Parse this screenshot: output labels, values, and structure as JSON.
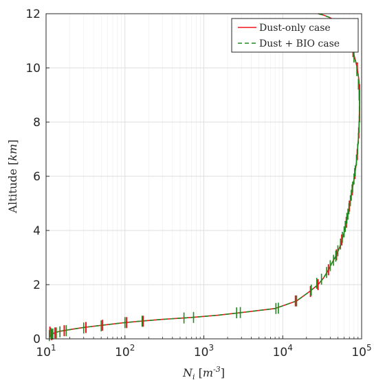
{
  "chart_data": {
    "type": "line",
    "xlabel": "N_i [m^-3]",
    "ylabel": "Altitude [km]",
    "x_scale": "log",
    "xlim": [
      10,
      100000
    ],
    "ylim": [
      0,
      12
    ],
    "grid": true,
    "legend_position": "top-right",
    "x_tick_labels": [
      "10^1",
      "10^2",
      "10^3",
      "10^4",
      "10^5"
    ],
    "y_ticks": [
      0,
      2,
      4,
      6,
      8,
      10,
      12
    ],
    "series": [
      {
        "name": "Dust-only case",
        "color": "#e8141b",
        "dash": "solid",
        "x": [
          11,
          11.5,
          12,
          13,
          15,
          18,
          23,
          30,
          50,
          100,
          170,
          300,
          700,
          1500,
          3000,
          8000,
          15000,
          22000,
          28000,
          33000,
          38000,
          43000,
          48000,
          53000,
          57000,
          61000,
          64000,
          67000,
          70000,
          73000,
          76000,
          79000,
          82000,
          85000,
          88000,
          90000,
          92000,
          93000,
          94000,
          94500,
          94000,
          92000,
          88000,
          83000,
          78000,
          72000,
          65000,
          57000,
          48000,
          40000,
          33000,
          28000
        ],
        "y": [
          0.05,
          0.12,
          0.18,
          0.23,
          0.28,
          0.32,
          0.37,
          0.42,
          0.5,
          0.6,
          0.66,
          0.72,
          0.79,
          0.87,
          0.97,
          1.12,
          1.4,
          1.75,
          2.0,
          2.25,
          2.55,
          2.85,
          3.1,
          3.4,
          3.7,
          4.0,
          4.3,
          4.6,
          4.9,
          5.2,
          5.5,
          5.8,
          6.1,
          6.4,
          6.8,
          7.2,
          7.6,
          8.0,
          8.4,
          8.8,
          9.2,
          9.6,
          10.0,
          10.3,
          10.6,
          10.9,
          11.2,
          11.45,
          11.7,
          11.85,
          11.95,
          12.0
        ]
      },
      {
        "name": "Dust + BIO case",
        "color": "#1f8a1f",
        "dash": "dashed",
        "x": [
          11,
          11.5,
          12,
          13,
          15,
          18,
          23,
          30,
          50,
          100,
          170,
          300,
          700,
          1500,
          3000,
          8000,
          15000,
          22000,
          28000,
          33000,
          38000,
          43000,
          48000,
          53000,
          57000,
          61000,
          64000,
          67000,
          70000,
          73000,
          76000,
          79000,
          82000,
          85000,
          88000,
          90000,
          92000,
          93000,
          94000,
          94500,
          94000,
          92000,
          88000,
          83000,
          78000,
          72000,
          65000,
          57000,
          48000,
          40000,
          33000,
          28000
        ],
        "y": [
          0.05,
          0.12,
          0.18,
          0.23,
          0.28,
          0.32,
          0.37,
          0.42,
          0.5,
          0.6,
          0.66,
          0.72,
          0.79,
          0.87,
          0.97,
          1.12,
          1.4,
          1.75,
          2.0,
          2.25,
          2.55,
          2.85,
          3.1,
          3.4,
          3.7,
          4.0,
          4.3,
          4.6,
          4.9,
          5.2,
          5.5,
          5.8,
          6.1,
          6.4,
          6.8,
          7.2,
          7.6,
          8.0,
          8.4,
          8.8,
          9.2,
          9.6,
          10.0,
          10.3,
          10.6,
          10.9,
          11.2,
          11.45,
          11.7,
          11.85,
          11.95,
          12.0
        ]
      }
    ],
    "error_bars": {
      "red": [
        {
          "x": 11.2,
          "y": 0.25
        },
        {
          "x": 11.8,
          "y": 0.15
        },
        {
          "x": 13,
          "y": 0.22
        },
        {
          "x": 17,
          "y": 0.3
        },
        {
          "x": 32,
          "y": 0.42
        },
        {
          "x": 52,
          "y": 0.5
        },
        {
          "x": 105,
          "y": 0.6
        },
        {
          "x": 170,
          "y": 0.65
        },
        {
          "x": 14500,
          "y": 1.4
        },
        {
          "x": 22500,
          "y": 1.75
        },
        {
          "x": 28000,
          "y": 2.0
        },
        {
          "x": 38000,
          "y": 2.55
        },
        {
          "x": 48000,
          "y": 3.1
        },
        {
          "x": 56000,
          "y": 3.65
        },
        {
          "x": 64000,
          "y": 4.3
        },
        {
          "x": 70000,
          "y": 4.9
        },
        {
          "x": 76000,
          "y": 5.5
        },
        {
          "x": 82000,
          "y": 6.1
        },
        {
          "x": 88000,
          "y": 6.8
        },
        {
          "x": 92000,
          "y": 7.6
        },
        {
          "x": 94000,
          "y": 8.4
        },
        {
          "x": 94000,
          "y": 9.2
        },
        {
          "x": 88000,
          "y": 10.0
        },
        {
          "x": 78000,
          "y": 10.6
        }
      ],
      "green": [
        {
          "x": 11,
          "y": 0.12
        },
        {
          "x": 11.6,
          "y": 0.2
        },
        {
          "x": 12.2,
          "y": 0.18
        },
        {
          "x": 13.5,
          "y": 0.22
        },
        {
          "x": 15,
          "y": 0.26
        },
        {
          "x": 18,
          "y": 0.3
        },
        {
          "x": 30,
          "y": 0.4
        },
        {
          "x": 50,
          "y": 0.48
        },
        {
          "x": 100,
          "y": 0.6
        },
        {
          "x": 165,
          "y": 0.65
        },
        {
          "x": 560,
          "y": 0.77
        },
        {
          "x": 740,
          "y": 0.79
        },
        {
          "x": 2600,
          "y": 0.96
        },
        {
          "x": 2900,
          "y": 0.97
        },
        {
          "x": 8200,
          "y": 1.12
        },
        {
          "x": 8800,
          "y": 1.13
        },
        {
          "x": 15000,
          "y": 1.4
        },
        {
          "x": 23000,
          "y": 1.8
        },
        {
          "x": 27000,
          "y": 2.05
        },
        {
          "x": 31000,
          "y": 2.2
        },
        {
          "x": 36000,
          "y": 2.45
        },
        {
          "x": 40000,
          "y": 2.7
        },
        {
          "x": 44000,
          "y": 2.9
        },
        {
          "x": 47000,
          "y": 3.05
        },
        {
          "x": 50000,
          "y": 3.25
        },
        {
          "x": 54000,
          "y": 3.5
        },
        {
          "x": 57000,
          "y": 3.75
        },
        {
          "x": 60000,
          "y": 3.95
        },
        {
          "x": 62000,
          "y": 4.15
        },
        {
          "x": 65000,
          "y": 4.45
        },
        {
          "x": 67000,
          "y": 4.6
        },
        {
          "x": 69000,
          "y": 4.8
        },
        {
          "x": 72000,
          "y": 5.1
        },
        {
          "x": 74000,
          "y": 5.3
        },
        {
          "x": 77000,
          "y": 5.6
        },
        {
          "x": 80000,
          "y": 5.9
        },
        {
          "x": 83000,
          "y": 6.2
        },
        {
          "x": 86000,
          "y": 6.6
        },
        {
          "x": 89000,
          "y": 7.0
        },
        {
          "x": 91000,
          "y": 7.4
        },
        {
          "x": 93000,
          "y": 7.8
        },
        {
          "x": 94500,
          "y": 8.2
        },
        {
          "x": 94000,
          "y": 8.6
        },
        {
          "x": 93000,
          "y": 9.0
        },
        {
          "x": 91000,
          "y": 9.4
        },
        {
          "x": 87000,
          "y": 9.9
        },
        {
          "x": 80000,
          "y": 10.4
        }
      ]
    }
  }
}
